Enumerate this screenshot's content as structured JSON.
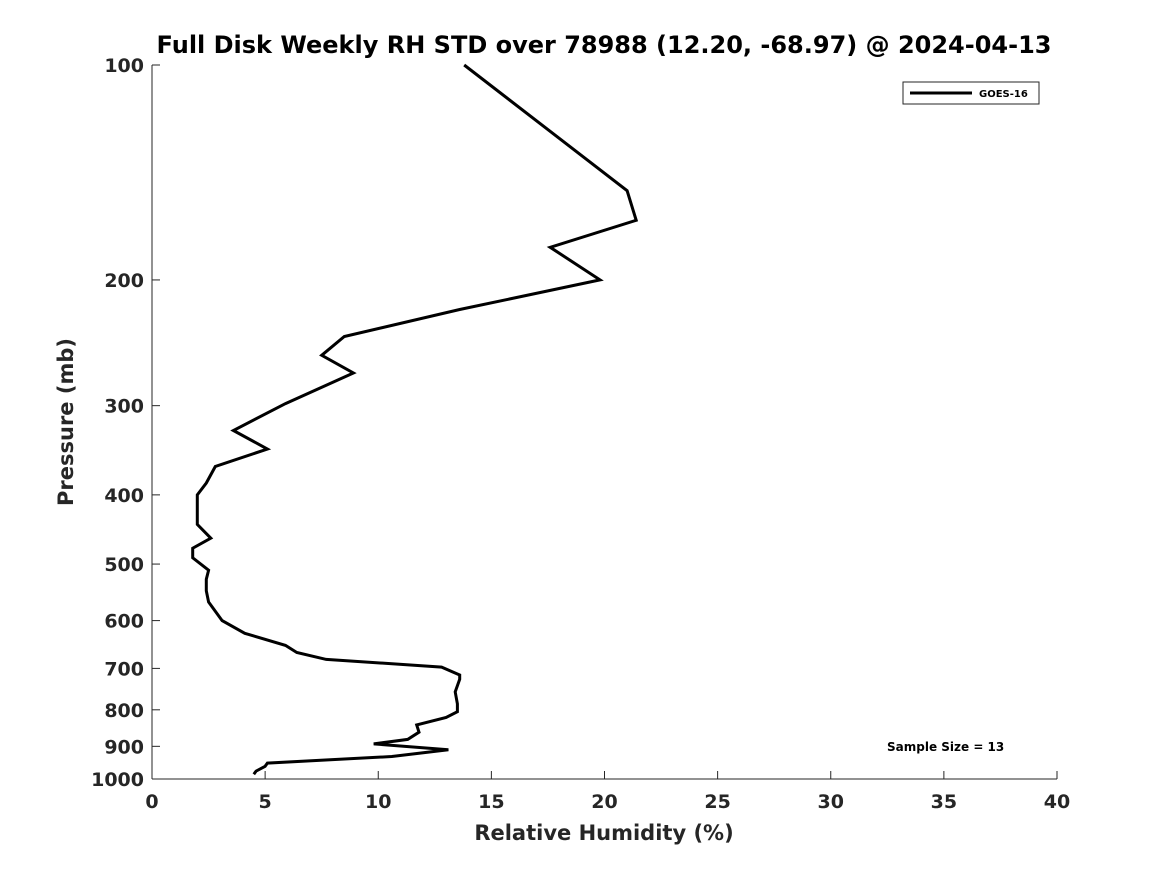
{
  "chart_data": {
    "type": "line",
    "title": "Full Disk Weekly RH STD over 78988 (12.20, -68.97) @ 2024-04-13",
    "xlabel": "Relative Humidity (%)",
    "ylabel": "Pressure (mb)",
    "xlim": [
      0,
      40
    ],
    "ylim": [
      100,
      1000
    ],
    "y_scale": "log",
    "y_reversed": true,
    "x_ticks": [
      0,
      5,
      10,
      15,
      20,
      25,
      30,
      35,
      40
    ],
    "y_ticks": [
      100,
      200,
      300,
      400,
      500,
      600,
      700,
      800,
      900,
      1000
    ],
    "grid": false,
    "legend_position": "top-right",
    "annotation": "Sample Size = 13",
    "series": [
      {
        "name": "GOES-16",
        "color": "#000000",
        "x": [
          13.8,
          21.0,
          21.4,
          17.6,
          19.8,
          13.6,
          8.5,
          7.5,
          8.9,
          5.9,
          3.6,
          5.1,
          2.8,
          2.4,
          2.0,
          2.0,
          2.0,
          2.0,
          2.6,
          1.8,
          1.8,
          2.5,
          2.4,
          2.4,
          2.5,
          3.1,
          4.1,
          5.9,
          6.4,
          7.7,
          12.8,
          13.6,
          13.6,
          13.4,
          13.5,
          13.5,
          13.0,
          11.7,
          11.8,
          11.3,
          9.8,
          13.1,
          10.6,
          5.1,
          5.0,
          4.6,
          4.5
        ],
        "y": [
          100,
          150,
          165,
          180,
          200,
          220,
          240,
          255,
          270,
          298,
          325,
          345,
          365,
          385,
          400,
          410,
          420,
          440,
          460,
          475,
          490,
          510,
          525,
          545,
          565,
          600,
          625,
          650,
          665,
          680,
          697,
          715,
          725,
          755,
          785,
          805,
          820,
          840,
          860,
          880,
          893,
          910,
          930,
          950,
          960,
          975,
          985
        ]
      }
    ]
  }
}
